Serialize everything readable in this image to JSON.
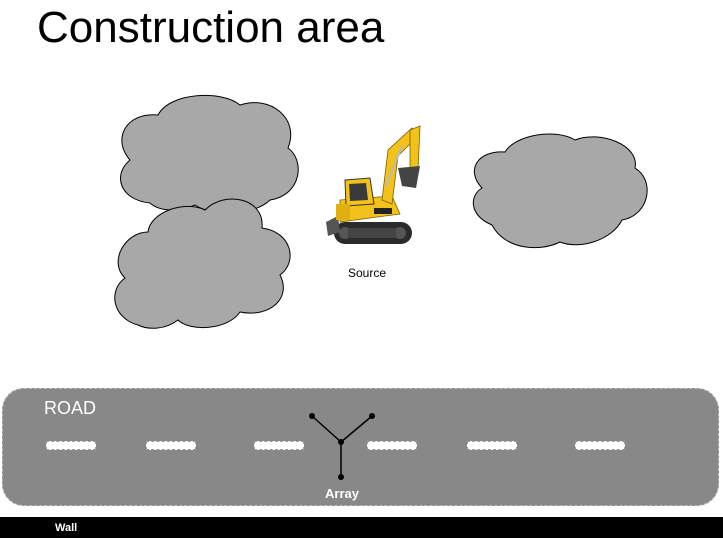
{
  "title": "Construction area",
  "source_label": "Source",
  "road_label": "ROAD",
  "array_label": "Array",
  "wall_label": "Wall",
  "colors": {
    "cloud_fill": "#a8a8a8",
    "road": "#888888",
    "wall": "#000000",
    "excavator": "#f2c21b"
  }
}
